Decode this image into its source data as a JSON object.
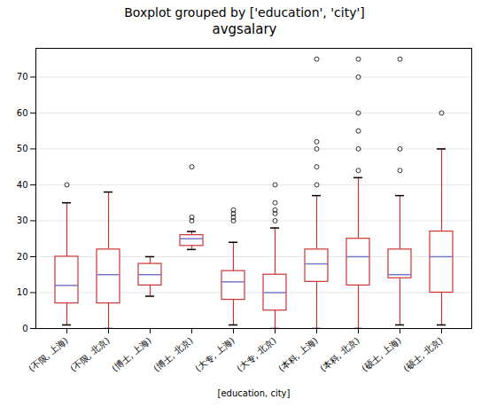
{
  "chart_data": {
    "type": "box",
    "title": "Boxplot grouped by ['education', 'city']",
    "subtitle": "avgsalary",
    "xlabel": "[education, city]",
    "categories": [
      "(不限, 上海)",
      "(不限, 北京)",
      "(博士, 上海)",
      "(博士, 北京)",
      "(大专, 上海)",
      "(大专, 北京)",
      "(本科, 上海)",
      "(本科, 北京)",
      "(硕士, 上海)",
      "(硕士, 北京)"
    ],
    "boxes": [
      {
        "q1": 7,
        "median": 12,
        "q3": 20,
        "whislo": 1,
        "whishi": 35,
        "fliers": [
          40
        ]
      },
      {
        "q1": 7,
        "median": 15,
        "q3": 22,
        "whislo": 0,
        "whishi": 38,
        "fliers": []
      },
      {
        "q1": 12,
        "median": 15,
        "q3": 18,
        "whislo": 9,
        "whishi": 20,
        "fliers": []
      },
      {
        "q1": 23,
        "median": 25,
        "q3": 26,
        "whislo": 22,
        "whishi": 27,
        "fliers": [
          30,
          31,
          45
        ]
      },
      {
        "q1": 8,
        "median": 13,
        "q3": 16,
        "whislo": 1,
        "whishi": 24,
        "fliers": [
          30,
          31,
          32,
          33
        ]
      },
      {
        "q1": 5,
        "median": 10,
        "q3": 15,
        "whislo": 0,
        "whishi": 28,
        "fliers": [
          30,
          32,
          33,
          35,
          40
        ]
      },
      {
        "q1": 13,
        "median": 18,
        "q3": 22,
        "whislo": 0,
        "whishi": 37,
        "fliers": [
          40,
          45,
          50,
          52,
          75
        ]
      },
      {
        "q1": 12,
        "median": 20,
        "q3": 25,
        "whislo": 0,
        "whishi": 42,
        "fliers": [
          44,
          50,
          55,
          60,
          70,
          75
        ]
      },
      {
        "q1": 14,
        "median": 15,
        "q3": 22,
        "whislo": 1,
        "whishi": 37,
        "fliers": [
          44,
          50,
          75
        ]
      },
      {
        "q1": 10,
        "median": 20,
        "q3": 27,
        "whislo": 1,
        "whishi": 50,
        "fliers": [
          60
        ]
      }
    ],
    "ylim": [
      0,
      78
    ],
    "yticks": [
      0,
      10,
      20,
      30,
      40,
      50,
      60,
      70
    ],
    "grid": true,
    "color": "#cc3333"
  }
}
